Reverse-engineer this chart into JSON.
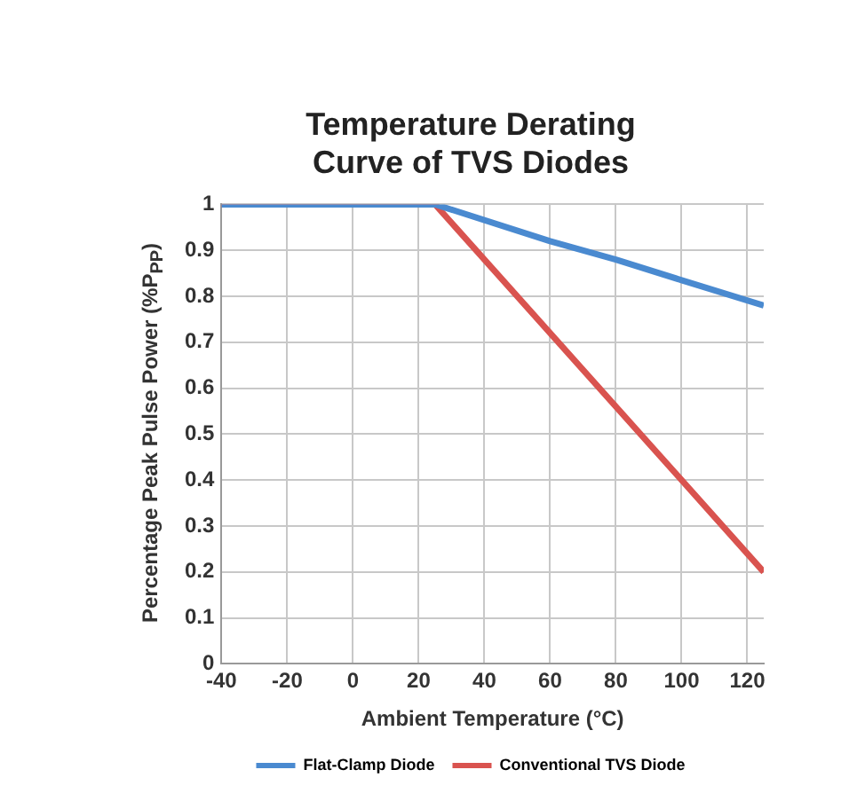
{
  "chart_data": {
    "type": "line",
    "title": [
      "Temperature Derating",
      "Curve of TVS Diodes"
    ],
    "xlabel": "Ambient Temperature (°C)",
    "ylabel": "Percentage Peak Pulse Power (%P$_{PP}$)",
    "series": [
      {
        "name": "Flat-Clamp Diode",
        "color": "#4a8ad0",
        "x": [
          -40,
          25,
          60,
          80,
          100,
          125
        ],
        "values": [
          1,
          1,
          0.92,
          0.88,
          0.835,
          0.78
        ]
      },
      {
        "name": "Conventional TVS Diode",
        "color": "#d9534f",
        "x": [
          -40,
          25,
          125
        ],
        "values": [
          1,
          1,
          0.2
        ]
      }
    ],
    "xlim": [
      -40,
      125
    ],
    "xticks": [
      -40,
      -20,
      0,
      20,
      40,
      60,
      80,
      100,
      120
    ],
    "ylim": [
      0,
      1
    ],
    "yticks": [
      0,
      0.1,
      0.2,
      0.3,
      0.4,
      0.5,
      0.6,
      0.7,
      0.8,
      0.9,
      1
    ],
    "grid": true,
    "legend": "bottom",
    "marker": "none",
    "line_style": "solid"
  }
}
